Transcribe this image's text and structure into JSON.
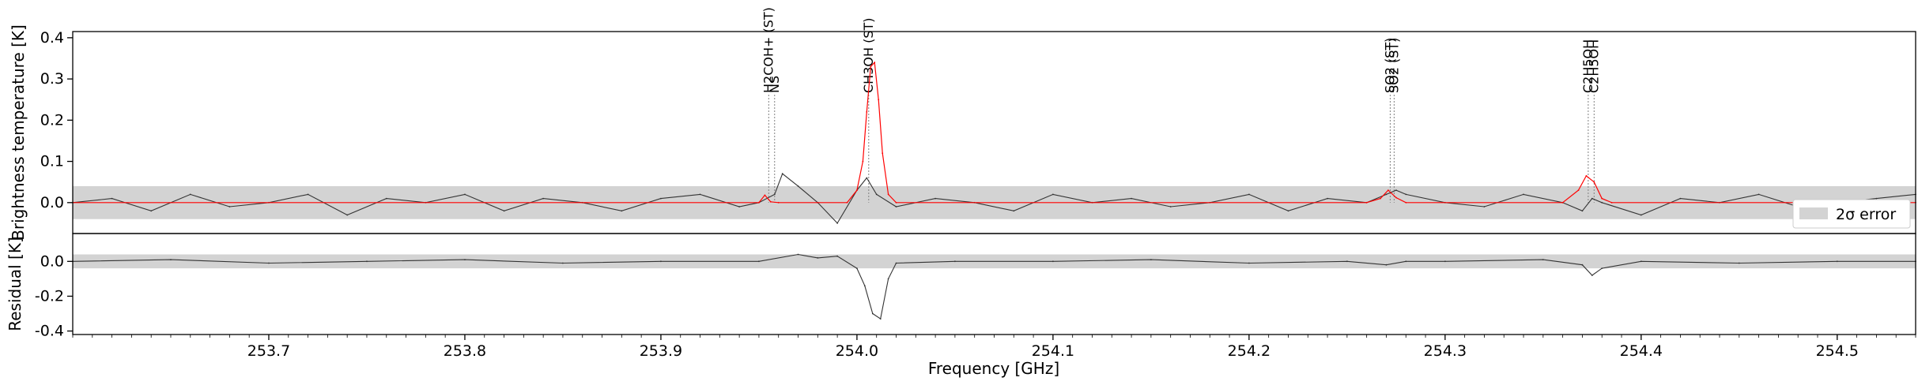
{
  "chart_data": {
    "type": "line",
    "xlabel": "Frequency [GHz]",
    "xlim": [
      253.6,
      254.54
    ],
    "x_ticks": [
      "253.7",
      "253.8",
      "253.9",
      "254.0",
      "254.1",
      "254.2",
      "254.3",
      "254.4",
      "254.5"
    ],
    "grid": false,
    "legend": {
      "position": "right",
      "entries": [
        "2σ error"
      ]
    },
    "colors": {
      "observed": "#333333",
      "model": "#ff0000",
      "error_band": "#d3d3d3",
      "line_marker": "#808080"
    },
    "panels": [
      {
        "name": "spectrum",
        "ylabel": "Brightness temperature [K]",
        "ylim": [
          -0.075,
          0.415
        ],
        "y_ticks": [
          "0.0",
          "0.1",
          "0.2",
          "0.3",
          "0.4"
        ],
        "error_band": [
          -0.04,
          0.04
        ],
        "series": [
          {
            "role": "observed",
            "x": [
              253.6,
              253.62,
              253.64,
              253.66,
              253.68,
              253.7,
              253.72,
              253.74,
              253.76,
              253.78,
              253.8,
              253.82,
              253.84,
              253.86,
              253.88,
              253.9,
              253.92,
              253.94,
              253.95,
              253.958,
              253.962,
              253.97,
              253.98,
              253.99,
              254.0,
              254.005,
              254.01,
              254.02,
              254.04,
              254.06,
              254.08,
              254.1,
              254.12,
              254.14,
              254.16,
              254.18,
              254.2,
              254.22,
              254.24,
              254.26,
              254.27,
              254.275,
              254.28,
              254.3,
              254.32,
              254.34,
              254.36,
              254.37,
              254.375,
              254.38,
              254.4,
              254.42,
              254.44,
              254.46,
              254.48,
              254.5,
              254.52,
              254.54
            ],
            "y": [
              0.0,
              0.01,
              -0.02,
              0.02,
              -0.01,
              0.0,
              0.02,
              -0.03,
              0.01,
              0.0,
              0.02,
              -0.02,
              0.01,
              0.0,
              -0.02,
              0.01,
              0.02,
              -0.01,
              0.0,
              0.02,
              0.07,
              0.04,
              0.0,
              -0.05,
              0.03,
              0.06,
              0.02,
              -0.01,
              0.01,
              0.0,
              -0.02,
              0.02,
              0.0,
              0.01,
              -0.01,
              0.0,
              0.02,
              -0.02,
              0.01,
              0.0,
              0.02,
              0.03,
              0.02,
              0.0,
              -0.01,
              0.02,
              0.0,
              -0.02,
              0.01,
              0.0,
              -0.03,
              0.01,
              0.0,
              0.02,
              -0.01,
              0.0,
              0.01,
              0.02
            ]
          },
          {
            "role": "model",
            "x": [
              253.6,
              253.95,
              253.953,
              253.956,
              253.96,
              253.995,
              254.0,
              254.003,
              254.005,
              254.007,
              254.009,
              254.011,
              254.013,
              254.016,
              254.02,
              254.26,
              254.267,
              254.271,
              254.275,
              254.28,
              254.36,
              254.368,
              254.372,
              254.376,
              254.38,
              254.385,
              254.54
            ],
            "y": [
              0.0,
              0.0,
              0.018,
              0.002,
              0.0,
              0.0,
              0.03,
              0.1,
              0.22,
              0.33,
              0.34,
              0.25,
              0.12,
              0.02,
              0.0,
              0.0,
              0.01,
              0.03,
              0.012,
              0.0,
              0.0,
              0.03,
              0.065,
              0.05,
              0.01,
              0.0,
              0.0
            ]
          }
        ],
        "line_markers": [
          {
            "label": "H2COH+ (ST)",
            "x": 253.955
          },
          {
            "label": "NS",
            "x": 253.958
          },
          {
            "label": "CH3OH (ST)",
            "x": 254.006
          },
          {
            "label": "SO2 (ST)",
            "x": 254.272
          },
          {
            "label": "SO2 (ST)",
            "x": 254.274
          },
          {
            "label": "C2H5OH",
            "x": 254.373
          },
          {
            "label": "C2H5OH",
            "x": 254.376
          }
        ]
      },
      {
        "name": "residual",
        "ylabel": "Residual [K]",
        "ylim": [
          -0.42,
          0.16
        ],
        "y_ticks": [
          "0.0",
          "-0.2",
          "-0.4"
        ],
        "error_band": [
          -0.04,
          0.04
        ],
        "series": [
          {
            "role": "residual",
            "x": [
              253.6,
              253.65,
              253.7,
              253.75,
              253.8,
              253.85,
              253.9,
              253.95,
              253.97,
              253.98,
              253.99,
              254.0,
              254.004,
              254.008,
              254.012,
              254.016,
              254.02,
              254.05,
              254.1,
              254.15,
              254.2,
              254.25,
              254.27,
              254.28,
              254.3,
              254.35,
              254.37,
              254.375,
              254.38,
              254.4,
              254.45,
              254.5,
              254.54
            ],
            "y": [
              0.0,
              0.01,
              -0.01,
              0.0,
              0.01,
              -0.01,
              0.0,
              0.0,
              0.04,
              0.02,
              0.03,
              -0.04,
              -0.14,
              -0.3,
              -0.33,
              -0.1,
              -0.01,
              0.0,
              0.0,
              0.01,
              -0.01,
              0.0,
              -0.02,
              0.0,
              0.0,
              0.01,
              -0.02,
              -0.08,
              -0.04,
              0.0,
              -0.01,
              0.0,
              0.0
            ]
          }
        ]
      }
    ]
  }
}
